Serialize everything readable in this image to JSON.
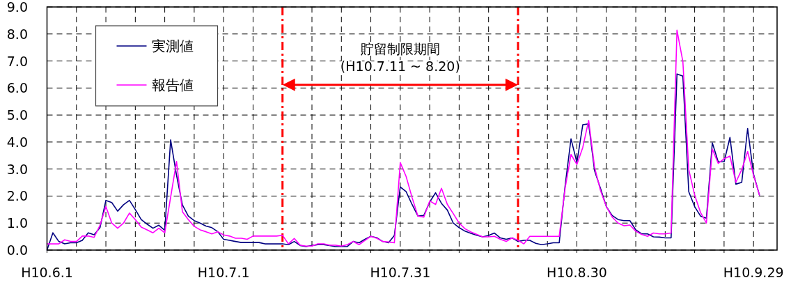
{
  "chart_data": {
    "type": "line",
    "x": [
      "--06-01",
      "--06-02",
      "--06-03",
      "--06-04",
      "--06-05",
      "--06-06",
      "--06-07",
      "--06-08",
      "--06-09",
      "--06-10",
      "--06-11",
      "--06-12",
      "--06-13",
      "--06-14",
      "--06-15",
      "--06-16",
      "--06-17",
      "--06-18",
      "--06-19",
      "--06-20",
      "--06-21",
      "--06-22",
      "--06-23",
      "--06-24",
      "--06-25",
      "--06-26",
      "--06-27",
      "--06-28",
      "--06-29",
      "--06-30",
      "--07-01",
      "--07-02",
      "--07-03",
      "--07-04",
      "--07-05",
      "--07-06",
      "--07-07",
      "--07-08",
      "--07-09",
      "--07-10",
      "--07-11",
      "--07-12",
      "--07-13",
      "--07-14",
      "--07-15",
      "--07-16",
      "--07-17",
      "--07-18",
      "--07-19",
      "--07-20",
      "--07-21",
      "--07-22",
      "--07-23",
      "--07-24",
      "--07-25",
      "--07-26",
      "--07-27",
      "--07-28",
      "--07-29",
      "--07-30",
      "--07-31",
      "--08-01",
      "--08-02",
      "--08-03",
      "--08-04",
      "--08-05",
      "--08-06",
      "--08-07",
      "--08-08",
      "--08-09",
      "--08-10",
      "--08-11",
      "--08-12",
      "--08-13",
      "--08-14",
      "--08-15",
      "--08-16",
      "--08-17",
      "--08-18",
      "--08-19",
      "--08-20",
      "--08-21",
      "--08-22",
      "--08-23",
      "--08-24",
      "--08-25",
      "--08-26",
      "--08-27",
      "--08-28",
      "--08-29",
      "--08-30",
      "--08-31",
      "--09-01",
      "--09-02",
      "--09-03",
      "--09-04",
      "--09-05",
      "--09-06",
      "--09-07",
      "--09-08",
      "--09-09",
      "--09-10",
      "--09-11",
      "--09-12",
      "--09-13",
      "--09-14",
      "--09-15",
      "--09-16",
      "--09-17",
      "--09-18",
      "--09-19",
      "--09-20",
      "--09-21",
      "--09-22",
      "--09-23",
      "--09-24",
      "--09-25",
      "--09-26",
      "--09-27",
      "--09-28",
      "--09-29",
      "--09-30"
    ],
    "series": [
      {
        "name": "実測値",
        "color": "#000080",
        "values": [
          0.0,
          0.64,
          0.32,
          0.23,
          0.27,
          0.27,
          0.36,
          0.64,
          0.57,
          0.83,
          1.84,
          1.76,
          1.44,
          1.68,
          1.84,
          1.5,
          1.13,
          0.96,
          0.81,
          0.92,
          0.73,
          4.08,
          2.77,
          1.67,
          1.26,
          1.09,
          1.0,
          0.89,
          0.83,
          0.68,
          0.4,
          0.36,
          0.32,
          0.28,
          0.28,
          0.28,
          0.28,
          0.23,
          0.23,
          0.23,
          0.23,
          0.2,
          0.32,
          0.17,
          0.13,
          0.17,
          0.2,
          0.2,
          0.17,
          0.13,
          0.13,
          0.13,
          0.32,
          0.27,
          0.4,
          0.51,
          0.46,
          0.32,
          0.27,
          0.54,
          2.34,
          2.16,
          1.69,
          1.26,
          1.28,
          1.78,
          2.12,
          1.73,
          1.48,
          1.0,
          0.83,
          0.7,
          0.62,
          0.55,
          0.49,
          0.54,
          0.63,
          0.45,
          0.4,
          0.45,
          0.32,
          0.36,
          0.36,
          0.25,
          0.2,
          0.23,
          0.27,
          0.27,
          2.38,
          4.12,
          3.24,
          4.64,
          4.67,
          2.94,
          2.29,
          1.61,
          1.28,
          1.13,
          1.09,
          1.09,
          0.75,
          0.6,
          0.6,
          0.49,
          0.48,
          0.45,
          0.45,
          6.52,
          6.44,
          2.16,
          1.61,
          1.26,
          1.18,
          3.97,
          3.27,
          3.27,
          4.17,
          2.44,
          2.51,
          4.5,
          2.81,
          2.04
        ]
      },
      {
        "name": "報告値",
        "color": "#ff00ff",
        "values": [
          0.23,
          0.23,
          0.23,
          0.38,
          0.32,
          0.32,
          0.52,
          0.52,
          0.47,
          0.92,
          1.61,
          1.0,
          0.81,
          1.0,
          1.37,
          1.13,
          0.85,
          0.75,
          0.64,
          0.81,
          0.64,
          1.96,
          3.28,
          1.42,
          1.13,
          0.88,
          0.75,
          0.68,
          0.6,
          0.68,
          0.56,
          0.52,
          0.44,
          0.44,
          0.4,
          0.52,
          0.52,
          0.52,
          0.52,
          0.52,
          0.55,
          0.23,
          0.43,
          0.18,
          0.15,
          0.15,
          0.23,
          0.23,
          0.18,
          0.18,
          0.15,
          0.2,
          0.32,
          0.2,
          0.36,
          0.51,
          0.44,
          0.32,
          0.3,
          0.27,
          3.24,
          2.72,
          1.95,
          1.26,
          1.22,
          1.82,
          1.69,
          2.29,
          1.69,
          1.35,
          1.0,
          0.79,
          0.67,
          0.58,
          0.49,
          0.49,
          0.51,
          0.4,
          0.32,
          0.45,
          0.36,
          0.23,
          0.51,
          0.51,
          0.51,
          0.51,
          0.51,
          0.51,
          2.29,
          3.54,
          3.17,
          3.8,
          4.8,
          3.07,
          2.21,
          1.61,
          1.22,
          1.0,
          0.9,
          0.93,
          0.7,
          0.58,
          0.51,
          0.63,
          0.6,
          0.6,
          0.63,
          8.14,
          6.98,
          2.98,
          2.04,
          1.39,
          1.0,
          3.74,
          3.21,
          3.38,
          3.48,
          2.51,
          2.98,
          3.65,
          2.77,
          2.04
        ]
      }
    ],
    "xlim": [
      "--06-01",
      "--10-03"
    ],
    "xticks": [
      {
        "value": "--06-01",
        "label": "H10.6.1"
      },
      {
        "value": "--06-06",
        "label": null
      },
      {
        "value": "--06-11",
        "label": null
      },
      {
        "value": "--06-16",
        "label": null
      },
      {
        "value": "--06-21",
        "label": null
      },
      {
        "value": "--06-26",
        "label": null
      },
      {
        "value": "--07-01",
        "label": "H10.7.1"
      },
      {
        "value": "--07-06",
        "label": null
      },
      {
        "value": "--07-16",
        "label": null
      },
      {
        "value": "--07-21",
        "label": null
      },
      {
        "value": "--07-26",
        "label": null
      },
      {
        "value": "--07-31",
        "label": "H10.7.31"
      },
      {
        "value": "--08-05",
        "label": null
      },
      {
        "value": "--08-10",
        "label": null
      },
      {
        "value": "--08-15",
        "label": null
      },
      {
        "value": "--08-25",
        "label": null
      },
      {
        "value": "--08-30",
        "label": "H10.8.30"
      },
      {
        "value": "--09-04",
        "label": null
      },
      {
        "value": "--09-09",
        "label": null
      },
      {
        "value": "--09-14",
        "label": null
      },
      {
        "value": "--09-19",
        "label": null
      },
      {
        "value": "--09-24",
        "label": null
      },
      {
        "value": "--09-29",
        "label": "H10.9.29"
      }
    ],
    "ylim": [
      0,
      9
    ],
    "yticks": [
      {
        "value": 0,
        "label": "0.0"
      },
      {
        "value": 1,
        "label": "1.0"
      },
      {
        "value": 2,
        "label": "2.0"
      },
      {
        "value": 3,
        "label": "3.0"
      },
      {
        "value": 4,
        "label": "4.0"
      },
      {
        "value": 5,
        "label": "5.0"
      },
      {
        "value": 6,
        "label": "6.0"
      },
      {
        "value": 7,
        "label": "7.0"
      },
      {
        "value": 8,
        "label": "8.0"
      },
      {
        "value": 9,
        "label": "9.0"
      }
    ],
    "ref_lines": [
      {
        "axis": "x",
        "value": "--07-11",
        "color": "#ff0000",
        "line_style": "dashed"
      },
      {
        "axis": "x",
        "value": "--08-20",
        "color": "#ff0000",
        "line_style": "dashed"
      }
    ],
    "annotations": [
      "貯留制限期間",
      "(H10.7.11 ~ 8.20)"
    ],
    "grid": true,
    "legend": "top left",
    "line_style": "solid",
    "marker": "none"
  }
}
